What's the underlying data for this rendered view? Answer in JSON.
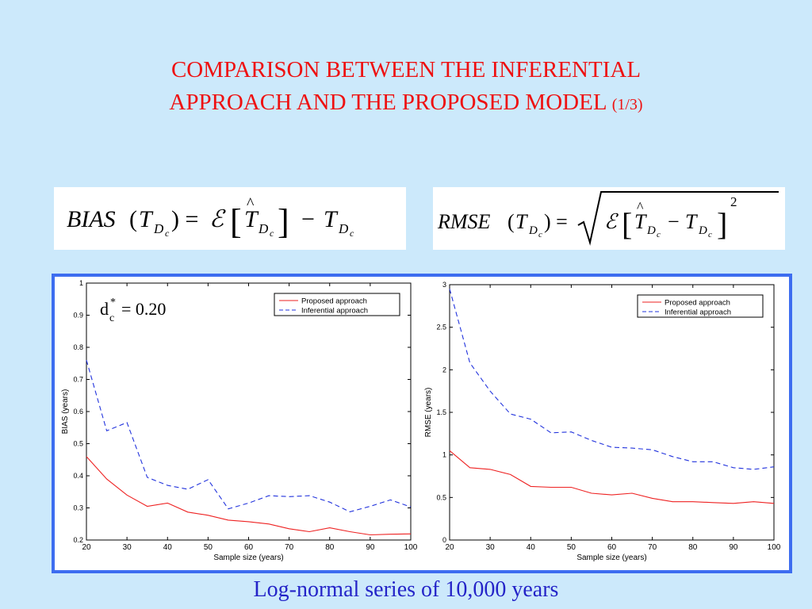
{
  "title": {
    "line1": "COMPARISON BETWEEN THE INFERENTIAL",
    "line2": "APPROACH AND THE PROPOSED MODEL",
    "part": "(1/3)"
  },
  "formulas": {
    "bias": "BIAS(T_Dc) = E[T̂_Dc] − T_Dc",
    "rmse": "RMSE(T_Dc) = √(E[T̂_Dc − T_Dc]²)"
  },
  "annotation": {
    "d": "d",
    "sub": "c",
    "sup": "*",
    "rest": "= 0.20"
  },
  "caption": "Log-normal series of 10,000 years",
  "colors": {
    "proposed": "#ee2222",
    "inferential": "#2233dd",
    "panel_border": "#3d6df0"
  },
  "chart_data": [
    {
      "type": "line",
      "xlabel": "Sample size (years)",
      "ylabel": "BIAS (years)",
      "xlim": [
        20,
        100
      ],
      "ylim": [
        0.2,
        1
      ],
      "xticks": [
        20,
        30,
        40,
        50,
        60,
        70,
        80,
        90,
        100
      ],
      "xtick_labels": [
        "20",
        "30",
        "40",
        "50",
        "60",
        "70",
        "80",
        "90",
        "100"
      ],
      "yticks": [
        0.2,
        0.3,
        0.4,
        0.5,
        0.6,
        0.7,
        0.8,
        0.9,
        1
      ],
      "ytick_labels": [
        "0.2",
        "0.3",
        "0.4",
        "0.5",
        "0.6",
        "0.7",
        "0.8",
        "0.9",
        "1"
      ],
      "legend": "top-right",
      "x": [
        20,
        25,
        30,
        35,
        40,
        45,
        50,
        55,
        60,
        65,
        70,
        75,
        80,
        85,
        90,
        95,
        100
      ],
      "series": [
        {
          "name": "Proposed approach",
          "style": "solid",
          "values": [
            0.46,
            0.39,
            0.34,
            0.305,
            0.315,
            0.287,
            0.277,
            0.262,
            0.257,
            0.25,
            0.235,
            0.226,
            0.238,
            0.226,
            0.216,
            0.218,
            0.219
          ]
        },
        {
          "name": "Inferential approach",
          "style": "dashed",
          "values": [
            0.76,
            0.54,
            0.566,
            0.395,
            0.37,
            0.358,
            0.388,
            0.297,
            0.315,
            0.338,
            0.335,
            0.338,
            0.318,
            0.288,
            0.305,
            0.325,
            0.303
          ]
        }
      ]
    },
    {
      "type": "line",
      "xlabel": "Sample size (years)",
      "ylabel": "RMSE (years)",
      "xlim": [
        20,
        100
      ],
      "ylim": [
        0,
        3
      ],
      "xticks": [
        20,
        30,
        40,
        50,
        60,
        70,
        80,
        90,
        100
      ],
      "xtick_labels": [
        "20",
        "30",
        "40",
        "50",
        "60",
        "70",
        "80",
        "90",
        "100"
      ],
      "yticks": [
        0,
        0.5,
        1,
        1.5,
        2,
        2.5,
        3
      ],
      "ytick_labels": [
        "0",
        "0.5",
        "1",
        "1.5",
        "2",
        "2.5",
        "3"
      ],
      "legend": "top-right",
      "x": [
        20,
        25,
        30,
        35,
        40,
        45,
        50,
        55,
        60,
        65,
        70,
        75,
        80,
        85,
        90,
        95,
        100
      ],
      "series": [
        {
          "name": "Proposed approach",
          "style": "solid",
          "values": [
            1.05,
            0.85,
            0.83,
            0.77,
            0.63,
            0.62,
            0.62,
            0.55,
            0.53,
            0.55,
            0.49,
            0.45,
            0.45,
            0.44,
            0.43,
            0.45,
            0.43
          ]
        },
        {
          "name": "Inferential approach",
          "style": "dashed",
          "values": [
            2.95,
            2.08,
            1.75,
            1.48,
            1.42,
            1.26,
            1.27,
            1.17,
            1.09,
            1.08,
            1.06,
            0.98,
            0.92,
            0.92,
            0.85,
            0.83,
            0.86
          ]
        }
      ]
    }
  ]
}
